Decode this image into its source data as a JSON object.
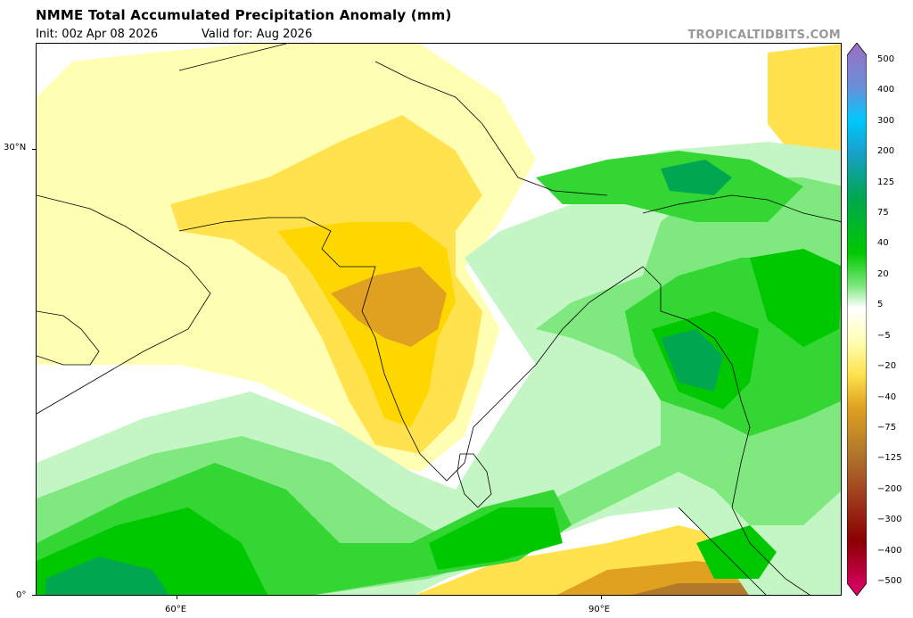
{
  "header": {
    "title": "NMME Total Accumulated Precipitation Anomaly (mm)",
    "init": "Init: 00z Apr 08 2026",
    "valid": "Valid for: Aug 2026",
    "credit": "TROPICALTIDBITS.COM"
  },
  "map": {
    "lat_ticks": [
      "30°N",
      "0°"
    ],
    "lon_ticks": [
      "60°E",
      "90°E"
    ],
    "region": "South Asia / Indian Ocean",
    "extent": {
      "lon": [
        50,
        107
      ],
      "lat": [
        0,
        37
      ]
    }
  },
  "colorbar": {
    "labels": [
      "500",
      "400",
      "300",
      "200",
      "125",
      "75",
      "40",
      "20",
      "5",
      "−5",
      "−20",
      "−40",
      "−75",
      "−125",
      "−200",
      "−300",
      "−400",
      "−500"
    ]
  },
  "colors": {
    "dry_light": "#ffffb3",
    "dry_mid": "#ffe24d",
    "dry_strong": "#ffd700",
    "dry_dark": "#e0a020",
    "dry_brown": "#b07a2a",
    "wet_light": "#c4f5c4",
    "wet_mid": "#7fe87f",
    "wet_strong": "#33d633",
    "wet_dark": "#00c800",
    "wet_deep": "#00a650",
    "cb_top": "#9b6fc4"
  }
}
